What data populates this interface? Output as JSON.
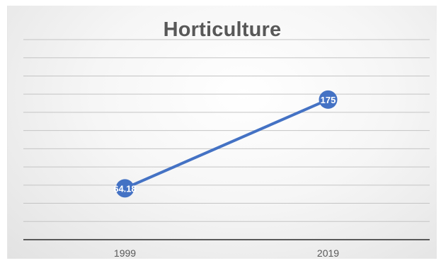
{
  "chart_data": {
    "type": "line",
    "title": "Horticulture",
    "categories": [
      "1999",
      "2019"
    ],
    "series": [
      {
        "values": [
          64.18,
          175
        ],
        "data_labels": [
          "64.18",
          "175"
        ]
      }
    ],
    "ylim": [
      0,
      250
    ],
    "grid": true,
    "legend": "none",
    "colors": {
      "line": "#4472c4",
      "marker": "#4472c4",
      "label_text": "#ffffff",
      "gridline": "#c4c4c4",
      "axis": "#595959",
      "tick_text": "#595959",
      "title_text": "#585858"
    }
  }
}
